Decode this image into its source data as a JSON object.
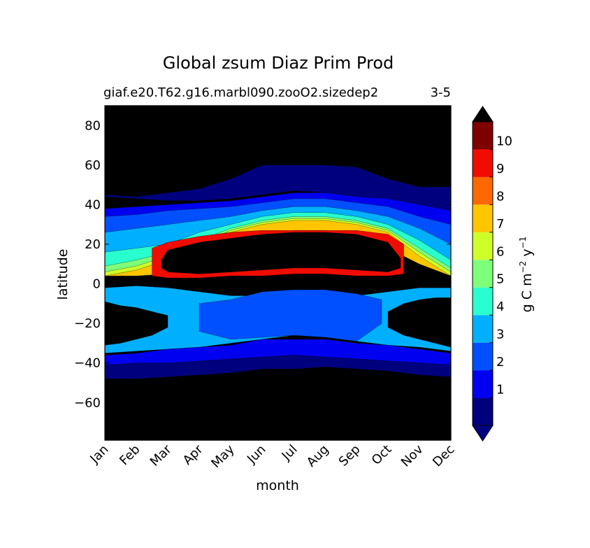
{
  "chart_data": {
    "type": "heatmap",
    "subtype": "filled-contour",
    "title": "Global zsum Diaz Prim Prod",
    "subtitle_left": "giaf.e20.T62.g16.marbl090.zooO2.sizedep2",
    "subtitle_right": "3-5",
    "xlabel": "month",
    "ylabel": "latitude",
    "x_categories": [
      "Jan",
      "Feb",
      "Mar",
      "Apr",
      "May",
      "Jun",
      "Jul",
      "Aug",
      "Sep",
      "Oct",
      "Nov",
      "Dec"
    ],
    "y_ticks": [
      -60,
      -40,
      -20,
      0,
      20,
      40,
      60,
      80
    ],
    "ylim": [
      -79,
      90
    ],
    "colorbar": {
      "label_main": "g C m",
      "label_exp1": "−2",
      "label_mid": " y",
      "label_exp2": "−1",
      "ticks": [
        1,
        2,
        3,
        4,
        5,
        6,
        7,
        8,
        9,
        10
      ],
      "levels": [
        0,
        1,
        2,
        3,
        4,
        5,
        6,
        7,
        8,
        9,
        10,
        11
      ],
      "colors": [
        "#00007f",
        "#0000f0",
        "#0050ff",
        "#00b0ff",
        "#29ffce",
        "#7dff7a",
        "#ceff29",
        "#ffc600",
        "#ff6800",
        "#f00c00",
        "#7f0000"
      ],
      "under_color": "#000080",
      "over_color": "#000000",
      "extend": "both"
    },
    "background_color": "#000000",
    "bands": [
      {
        "name": "north-outer-shelf",
        "level": 1,
        "color": "#00007f",
        "x": [
          0,
          1,
          2,
          3,
          4,
          5,
          6,
          7,
          8,
          9,
          10,
          11
        ],
        "top": [
          45,
          44,
          46,
          48,
          53,
          60,
          60,
          60,
          59,
          53,
          49,
          49
        ],
        "bottom": [
          44,
          43,
          42,
          42,
          43,
          45,
          47,
          46,
          43,
          42,
          40,
          36
        ]
      },
      {
        "name": "north-blue",
        "level": 2,
        "color": "#0000f0",
        "x": [
          0,
          1,
          2,
          3,
          4,
          5,
          6,
          7,
          8,
          9,
          10,
          11
        ],
        "top": [
          38,
          39,
          40,
          41,
          42,
          44,
          46,
          46,
          44,
          43,
          40,
          37
        ],
        "bottom": [
          32,
          33,
          34,
          35,
          37,
          38,
          40,
          40,
          38,
          36,
          31,
          26
        ]
      },
      {
        "name": "north-light-blue",
        "level": 3,
        "color": "#0050ff",
        "x": [
          0,
          1,
          2,
          3,
          4,
          5,
          6,
          7,
          8,
          9,
          10,
          11
        ],
        "top": [
          34,
          35,
          37,
          38,
          39,
          41,
          43,
          43,
          41,
          39,
          34,
          30
        ],
        "bottom": [
          22,
          23,
          25,
          28,
          31,
          33,
          35,
          35,
          33,
          30,
          24,
          14
        ]
      },
      {
        "name": "north-cyan",
        "level": 4,
        "color": "#00b0ff",
        "x": [
          0,
          1,
          2,
          3,
          4,
          5,
          6,
          7,
          8,
          9,
          10,
          11
        ],
        "top": [
          26,
          28,
          30,
          32,
          34,
          37,
          39,
          39,
          37,
          34,
          28,
          20
        ],
        "bottom": [
          8,
          10,
          12,
          18,
          24,
          28,
          30,
          30,
          29,
          24,
          16,
          6
        ]
      },
      {
        "name": "north-aqua",
        "level": 5,
        "color": "#29ffce",
        "x": [
          0,
          1,
          2,
          3,
          4,
          5,
          6,
          7,
          8,
          9,
          10,
          11
        ],
        "top": [
          16,
          18,
          20,
          26,
          30,
          34,
          36,
          36,
          34,
          30,
          22,
          12
        ],
        "bottom": [
          4,
          4,
          5,
          8,
          14,
          24,
          27,
          27,
          26,
          18,
          10,
          4
        ]
      },
      {
        "name": "north-green",
        "level": 6,
        "color": "#7dff7a",
        "x": [
          0,
          1,
          2,
          3,
          4,
          5,
          6,
          7,
          8,
          9,
          10,
          11
        ],
        "top": [
          9,
          12,
          16,
          22,
          28,
          32,
          34,
          34,
          32,
          28,
          18,
          8
        ]
      },
      {
        "name": "north-yellow",
        "level": 7,
        "color": "#ceff29",
        "x": [
          0,
          1,
          2,
          3,
          4,
          5,
          6,
          7,
          8,
          9,
          10,
          11
        ],
        "top": [
          6,
          9,
          14,
          20,
          27,
          31,
          33,
          33,
          31,
          27,
          16,
          6
        ]
      },
      {
        "name": "north-orange",
        "level": 8,
        "color": "#ffc600",
        "x": [
          0,
          1,
          2,
          3,
          4,
          5,
          6,
          7,
          8,
          9,
          10,
          11
        ],
        "top": [
          4,
          7,
          12,
          18,
          26,
          30,
          32,
          32,
          30,
          26,
          14,
          4
        ]
      },
      {
        "name": "north-red-ring",
        "level": 9,
        "color": "#f00c00",
        "x": [
          1.5,
          2,
          3,
          4,
          5,
          6,
          7,
          8,
          9,
          9.5
        ],
        "top": [
          18,
          21,
          24,
          26,
          27,
          27,
          27,
          27,
          25,
          20
        ],
        "bottom": [
          4,
          3,
          3,
          4,
          4,
          5,
          5,
          4,
          4,
          5
        ]
      },
      {
        "name": "north-core",
        "level": 10,
        "color": "#000000",
        "x": [
          1.8,
          2,
          3,
          4,
          5,
          6,
          7,
          8,
          9,
          9.4
        ],
        "top": [
          12,
          17,
          21,
          23,
          25,
          26,
          26,
          25,
          21,
          13
        ],
        "bottom": [
          8,
          6,
          5,
          6,
          7,
          8,
          8,
          7,
          6,
          8
        ]
      },
      {
        "name": "south-cyan",
        "level": 4,
        "color": "#00b0ff",
        "x": [
          0,
          1,
          2,
          3,
          4,
          5,
          6,
          7,
          8,
          9,
          10,
          11
        ],
        "top": [
          -2,
          -1,
          -2,
          -4,
          -6,
          -6,
          -5,
          -5,
          -6,
          -4,
          -2,
          -2
        ],
        "bottom": [
          -35,
          -34,
          -33,
          -32,
          -30,
          -28,
          -26,
          -27,
          -29,
          -31,
          -32,
          -34
        ]
      },
      {
        "name": "south-light-blue",
        "level": 3,
        "color": "#0050ff",
        "x": [
          3,
          4,
          5,
          6,
          7,
          8,
          8.8
        ],
        "top": [
          -10,
          -8,
          -4,
          -3,
          -3,
          -5,
          -8
        ],
        "bottom": [
          -24,
          -28,
          -27,
          -26,
          -27,
          -29,
          -20
        ]
      },
      {
        "name": "south-blue",
        "level": 2,
        "color": "#0000f0",
        "x": [
          0,
          1,
          2,
          3,
          4,
          5,
          6,
          7,
          8,
          9,
          10,
          11
        ],
        "top": [
          -36,
          -35,
          -33,
          -32,
          -31,
          -28,
          -28,
          -28,
          -30,
          -31,
          -33,
          -35
        ],
        "bottom": [
          -41,
          -40,
          -40,
          -39,
          -38,
          -37,
          -36,
          -37,
          -38,
          -39,
          -40,
          -41
        ]
      },
      {
        "name": "south-deep-blue",
        "level": 1,
        "color": "#00007f",
        "x": [
          0,
          1,
          2,
          3,
          4,
          5,
          6,
          7,
          8,
          9,
          10,
          11
        ],
        "top": [
          -41,
          -40,
          -40,
          -39,
          -38,
          -37,
          -36,
          -37,
          -38,
          -39,
          -40,
          -41
        ],
        "bottom": [
          -48,
          -48,
          -47,
          -46,
          -45,
          -43,
          -43,
          -42,
          -43,
          -44,
          -46,
          -47
        ]
      },
      {
        "name": "south-west-core",
        "level": 10,
        "color": "#000000",
        "x": [
          0,
          0.5,
          1,
          1.5,
          2
        ],
        "top": [
          -9,
          -11,
          -12,
          -14,
          -16
        ],
        "bottom": [
          -31,
          -30,
          -28,
          -26,
          -22
        ]
      },
      {
        "name": "south-east-core",
        "level": 10,
        "color": "#000000",
        "x": [
          9,
          9.5,
          10,
          10.5,
          11
        ],
        "top": [
          -14,
          -10,
          -8,
          -7,
          -7
        ],
        "bottom": [
          -22,
          -26,
          -28,
          -30,
          -32
        ]
      }
    ]
  }
}
